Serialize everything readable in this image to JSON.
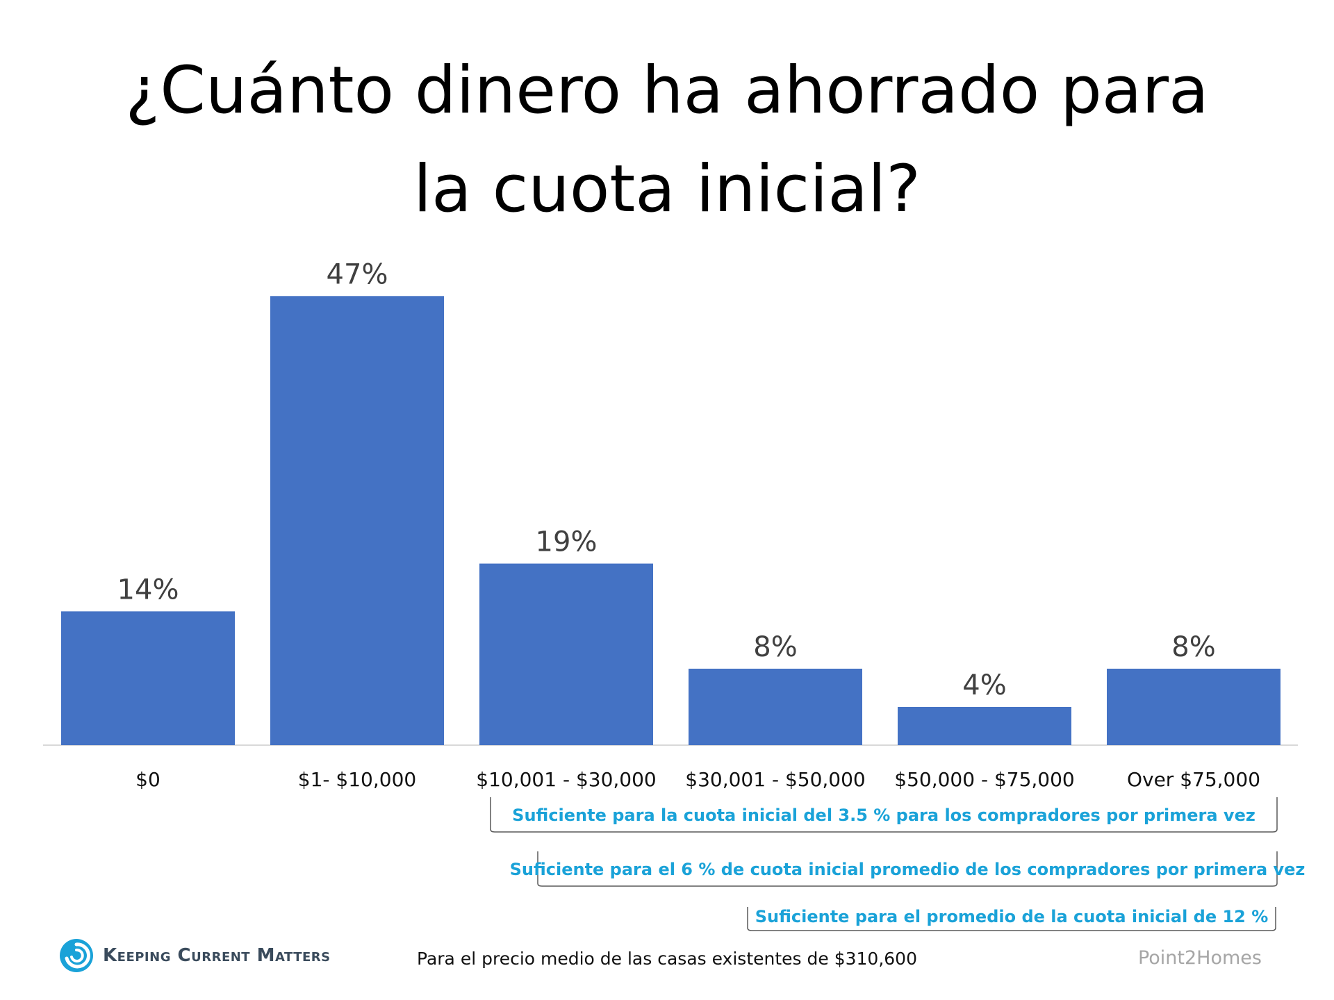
{
  "title": {
    "line1": "¿Cuánto dinero ha ahorrado para",
    "line2": "la cuota inicial?"
  },
  "colors": {
    "bar": "#4472c4",
    "bracket_text": "#1aa2d8",
    "source_text": "#a6a6a6",
    "logo": "#1aa2d8"
  },
  "chart_data": {
    "type": "bar",
    "categories": [
      "$0",
      "$1- $10,000",
      "$10,001 - $30,000",
      "$30,001 - $50,000",
      "$50,000 - $75,000",
      "Over $75,000"
    ],
    "values": [
      14,
      47,
      19,
      8,
      4,
      8
    ],
    "value_labels": [
      "14%",
      "47%",
      "19%",
      "8%",
      "4%",
      "8%"
    ],
    "ylim": [
      0,
      50
    ],
    "grid": false,
    "title": "¿Cuánto dinero ha ahorrado para la cuota inicial?",
    "annotations": [
      {
        "text": "Suficiente para la cuota inicial del 3.5 % para los compradores por primera vez",
        "from_category": 2,
        "to_category": 5
      },
      {
        "text": "Suficiente para el 6 % de cuota inicial promedio de los compradores por primera vez",
        "from_category": 2,
        "to_category": 5
      },
      {
        "text": "Suficiente para el promedio de la cuota inicial de 12 %",
        "from_category": 3,
        "to_category": 5
      }
    ]
  },
  "footer": {
    "note": "Para el precio medio de las casas existentes de $310,600",
    "source": "Point2Homes",
    "brand": "Keeping Current Matters",
    "logo_icon": "swirl-logo-icon"
  }
}
